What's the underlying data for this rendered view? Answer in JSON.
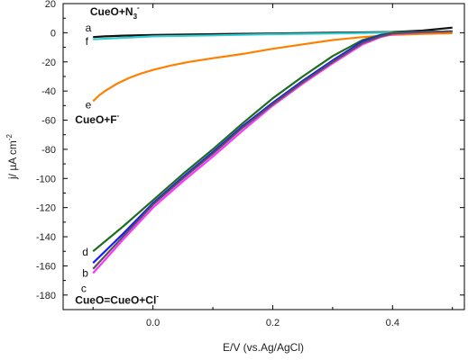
{
  "chart_data": {
    "type": "line",
    "xlabel": "E/V (vs.Ag/AgCl)",
    "ylabel": "j/ µA cm",
    "ylabel_superscript": "-2",
    "xlim": [
      -0.15,
      0.52
    ],
    "ylim": [
      -190,
      20
    ],
    "x_ticks": [
      0.0,
      0.2,
      0.4
    ],
    "x_tick_labels": [
      "0.0",
      "0.2",
      "0.4"
    ],
    "y_ticks": [
      20,
      0,
      -20,
      -40,
      -60,
      -80,
      -100,
      -120,
      -140,
      -160,
      -180
    ],
    "y_tick_labels": [
      "20",
      "0",
      "-20",
      "-40",
      "-60",
      "-80",
      "-100",
      "-120",
      "-140",
      "-160",
      "-180"
    ],
    "grid": false,
    "series": [
      {
        "color": "#111111",
        "x": [
          -0.1,
          -0.08,
          -0.05,
          0.0,
          0.1,
          0.2,
          0.3,
          0.4,
          0.45,
          0.5
        ],
        "y": [
          -3.0,
          -2.5,
          -2.0,
          -1.5,
          -1.0,
          -0.5,
          0.0,
          0.5,
          1.5,
          3.5
        ]
      },
      {
        "color": "#33cccc",
        "x": [
          -0.1,
          -0.05,
          0.0,
          0.1,
          0.2,
          0.3,
          0.4,
          0.5
        ],
        "y": [
          -4.5,
          -3.5,
          -2.5,
          -1.8,
          -1.0,
          -0.5,
          0.2,
          1.0
        ]
      },
      {
        "color": "#ff8000",
        "x": [
          -0.1,
          -0.09,
          -0.08,
          -0.06,
          -0.04,
          -0.02,
          0.0,
          0.03,
          0.06,
          0.1,
          0.15,
          0.2,
          0.25,
          0.3,
          0.35,
          0.4,
          0.45,
          0.5
        ],
        "y": [
          -47,
          -43,
          -40,
          -35,
          -31,
          -28,
          -25.5,
          -22.5,
          -20,
          -17.5,
          -14.5,
          -11,
          -8,
          -5,
          -3,
          -1.5,
          -0.8,
          -0.3
        ]
      },
      {
        "color": "#1f6b1f",
        "x": [
          -0.1,
          -0.05,
          0.0,
          0.05,
          0.1,
          0.15,
          0.2,
          0.25,
          0.3,
          0.35,
          0.38,
          0.4,
          0.45,
          0.5
        ],
        "y": [
          -150,
          -133,
          -115,
          -97,
          -80,
          -62,
          -45,
          -30,
          -16,
          -5,
          -1.5,
          0,
          0.5,
          1.0
        ]
      },
      {
        "color": "#1a1aff",
        "x": [
          -0.1,
          -0.05,
          0.0,
          0.05,
          0.1,
          0.15,
          0.2,
          0.25,
          0.3,
          0.35,
          0.38,
          0.4,
          0.45,
          0.5
        ],
        "y": [
          -158,
          -138,
          -117,
          -99,
          -82,
          -64,
          -48,
          -33,
          -19,
          -6,
          -2,
          -0.5,
          0.5,
          1.0
        ]
      },
      {
        "color": "#ff33ff",
        "x": [
          -0.1,
          -0.05,
          0.0,
          0.05,
          0.1,
          0.15,
          0.2,
          0.25,
          0.3,
          0.35,
          0.38,
          0.4,
          0.45,
          0.5
        ],
        "y": [
          -165,
          -142,
          -120,
          -102,
          -85,
          -67,
          -50,
          -35,
          -21,
          -8,
          -3,
          -1,
          0.3,
          1.0
        ]
      },
      {
        "color": "#555555",
        "x": [
          -0.1,
          -0.05,
          0.0,
          0.05,
          0.1,
          0.15,
          0.2,
          0.25,
          0.3,
          0.35,
          0.38,
          0.4,
          0.45,
          0.5
        ],
        "y": [
          -162,
          -140,
          -118,
          -100,
          -83,
          -65,
          -49,
          -34,
          -20,
          -7,
          -2.5,
          -0.5,
          0.4,
          1.0
        ]
      }
    ],
    "annotations": [
      {
        "name": "label-cueo-n3",
        "text": "CueO+N",
        "sub": "3",
        "sup": "-",
        "x": -0.105,
        "y": 12,
        "bold": true
      },
      {
        "name": "label-a",
        "text": "a",
        "x": -0.113,
        "y": 1,
        "bold": false
      },
      {
        "name": "label-f",
        "text": "f",
        "x": -0.113,
        "y": -8.5,
        "bold": false
      },
      {
        "name": "label-e",
        "text": "e",
        "x": -0.113,
        "y": -52,
        "bold": false
      },
      {
        "name": "label-cueo-f",
        "text": "CueO+F",
        "sup": "-",
        "x": -0.13,
        "y": -62,
        "bold": true
      },
      {
        "name": "label-d",
        "text": "d",
        "x": -0.118,
        "y": -153,
        "bold": false
      },
      {
        "name": "label-b",
        "text": "b",
        "x": -0.118,
        "y": -167.5,
        "bold": false
      },
      {
        "name": "label-c",
        "text": "c",
        "x": -0.12,
        "y": -178,
        "bold": false
      },
      {
        "name": "label-cueo-cl",
        "text": "CueO=CueO+Cl",
        "sup": "-",
        "x": -0.13,
        "y": -186,
        "bold": true
      }
    ]
  }
}
